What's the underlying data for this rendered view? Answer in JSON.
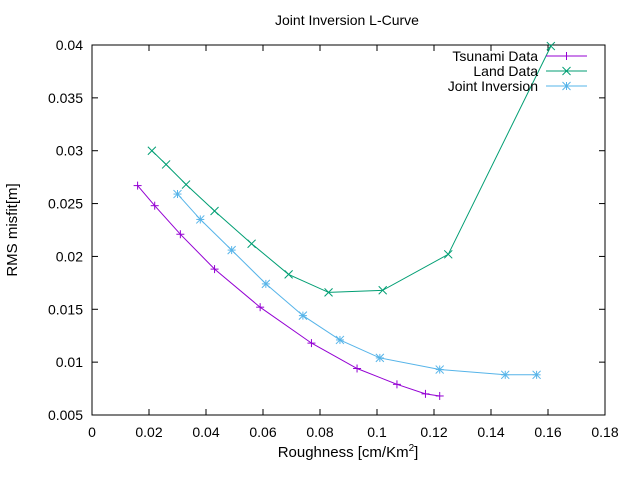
{
  "chart_data": {
    "type": "line",
    "title": "Joint Inversion L-Curve",
    "xlabel": "Roughness [cm/Km",
    "xlabel_sup": "2",
    "xlabel_tail": "]",
    "ylabel": "RMS misfit[m]",
    "xlim": [
      0,
      0.18
    ],
    "ylim": [
      0.005,
      0.04
    ],
    "xticks": [
      "0",
      "0.02",
      "0.04",
      "0.06",
      "0.08",
      "0.1",
      "0.12",
      "0.14",
      "0.16",
      "0.18"
    ],
    "yticks": [
      "0.005",
      "0.01",
      "0.015",
      "0.02",
      "0.025",
      "0.03",
      "0.035",
      "0.04"
    ],
    "grid": false,
    "legend_position": "top-right",
    "series": [
      {
        "name": "Tsunami Data",
        "color": "#9400d3",
        "marker": "plus",
        "x": [
          0.016,
          0.022,
          0.031,
          0.043,
          0.059,
          0.077,
          0.093,
          0.107,
          0.117,
          0.122
        ],
        "y": [
          0.0267,
          0.0248,
          0.0221,
          0.0188,
          0.0152,
          0.0118,
          0.0094,
          0.0079,
          0.007,
          0.0068
        ]
      },
      {
        "name": "Land Data",
        "color": "#009e73",
        "marker": "cross",
        "x": [
          0.021,
          0.026,
          0.033,
          0.043,
          0.056,
          0.069,
          0.083,
          0.102,
          0.125,
          0.161
        ],
        "y": [
          0.03,
          0.0287,
          0.0268,
          0.0243,
          0.0212,
          0.0183,
          0.0166,
          0.0168,
          0.0202,
          0.0399
        ]
      },
      {
        "name": "Joint Inversion",
        "color": "#56b4e9",
        "marker": "star",
        "x": [
          0.03,
          0.038,
          0.049,
          0.061,
          0.074,
          0.087,
          0.101,
          0.122,
          0.145,
          0.156
        ],
        "y": [
          0.0259,
          0.0235,
          0.0206,
          0.0174,
          0.0144,
          0.0121,
          0.0104,
          0.0093,
          0.0088,
          0.0088
        ]
      }
    ]
  }
}
